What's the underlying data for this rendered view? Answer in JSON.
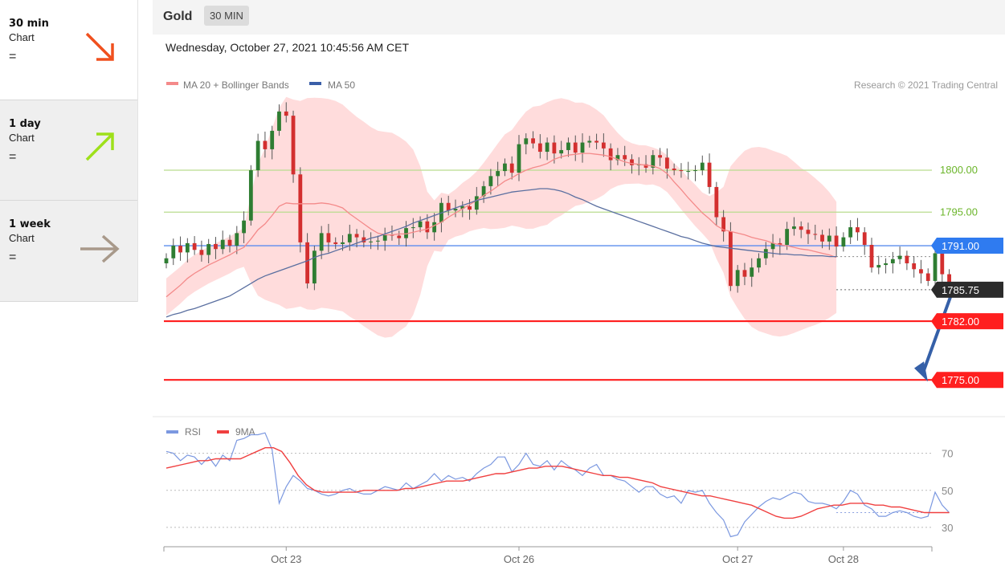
{
  "timeframes": [
    {
      "title": "30 min",
      "sub": "Chart",
      "sign": "=",
      "direction": "down",
      "color": "#f0501e"
    },
    {
      "title": "1 day",
      "sub": "Chart",
      "sign": "=",
      "direction": "up",
      "color": "#9ee01a"
    },
    {
      "title": "1 week",
      "sub": "Chart",
      "sign": "=",
      "direction": "right",
      "color": "#a8998a"
    }
  ],
  "header": {
    "instrument": "Gold",
    "period": "30 MIN"
  },
  "timestamp": "Wednesday, October 27, 2021 10:45:56 AM CET",
  "legend": {
    "ma20": "MA 20 + Bollinger Bands",
    "ma50": "MA 50",
    "credit": "Research © 2021 Trading Central"
  },
  "rsi_legend": {
    "rsi": "RSI",
    "ma": "9MA"
  },
  "colors": {
    "up": "#2e7d32",
    "down": "#d32f2f",
    "ma20": "#f48a8a",
    "ma50": "#5a6fa0",
    "band": "#ffd6d6",
    "support": "#ff1f1f",
    "resistance": "#b9dc8e",
    "pivot": "#5a8dee",
    "rsi": "#7b98e0",
    "rsi_ma": "#f04040"
  },
  "chart_data": [
    {
      "type": "candlestick",
      "title": "Gold",
      "price_range": [
        1771,
        1809
      ],
      "x_ticks": [
        {
          "label": "Oct 23",
          "index": 17
        },
        {
          "label": "Oct 26",
          "index": 50
        },
        {
          "label": "Oct 27",
          "index": 81
        },
        {
          "label": "Oct 28",
          "index": 96
        }
      ],
      "levels": [
        {
          "value": 1800.0,
          "label": "1800.00",
          "kind": "resistance"
        },
        {
          "value": 1795.0,
          "label": "1795.00",
          "kind": "resistance"
        },
        {
          "value": 1791.0,
          "label": "1791.00",
          "kind": "pivot"
        },
        {
          "value": 1785.75,
          "label": "1785.75",
          "kind": "last"
        },
        {
          "value": 1782.0,
          "label": "1782.00",
          "kind": "support"
        },
        {
          "value": 1775.0,
          "label": "1775.00",
          "kind": "support"
        }
      ],
      "close": [
        1789.5,
        1791.0,
        1790.2,
        1791.3,
        1790.5,
        1789.9,
        1791.2,
        1790.6,
        1791.7,
        1791.0,
        1792.5,
        1794.0,
        1800.0,
        1803.5,
        1802.5,
        1804.7,
        1807.0,
        1806.5,
        1799.5,
        1791.4,
        1786.5,
        1790.4,
        1792.5,
        1791.4,
        1791.2,
        1791.4,
        1792.4,
        1792.0,
        1791.4,
        1791.5,
        1791.6,
        1792.3,
        1792.2,
        1791.9,
        1793.1,
        1793.2,
        1793.9,
        1792.6,
        1793.8,
        1796.1,
        1795.2,
        1795.4,
        1795.7,
        1795.3,
        1796.9,
        1798.1,
        1799.3,
        1799.9,
        1800.8,
        1799.7,
        1803.1,
        1803.8,
        1803.2,
        1802.2,
        1803.3,
        1802.0,
        1802.4,
        1803.3,
        1802.1,
        1803.3,
        1803.5,
        1803.3,
        1802.6,
        1801.2,
        1801.8,
        1801.3,
        1800.6,
        1800.7,
        1800.3,
        1801.8,
        1801.5,
        1800.2,
        1800.0,
        1799.9,
        1799.9,
        1800.0,
        1800.9,
        1798.0,
        1794.4,
        1792.7,
        1786.2,
        1788.1,
        1787.3,
        1788.4,
        1789.5,
        1790.6,
        1791.3,
        1791.1,
        1793.0,
        1793.3,
        1792.9,
        1792.4,
        1792.3,
        1791.5,
        1792.2,
        1790.9,
        1792.0,
        1793.2,
        1792.6,
        1791.1,
        1788.4,
        1788.7,
        1788.9,
        1789.4,
        1789.8,
        1788.9,
        1788.2,
        1787.7,
        1786.8,
        1790.1,
        1787.6,
        1785.75
      ],
      "ma20": [
        1784.9,
        1785.6,
        1786.3,
        1787.1,
        1787.7,
        1788.2,
        1788.7,
        1789.1,
        1789.5,
        1789.9,
        1790.4,
        1790.8,
        1791.8,
        1792.9,
        1793.6,
        1794.6,
        1795.7,
        1796.1,
        1796.0,
        1796.0,
        1796.0,
        1796.0,
        1796.1,
        1796.0,
        1795.8,
        1795.5,
        1794.8,
        1794.2,
        1793.6,
        1793.0,
        1792.5,
        1792.3,
        1792.3,
        1792.4,
        1792.4,
        1792.6,
        1792.8,
        1793.0,
        1793.4,
        1793.8,
        1794.4,
        1794.9,
        1795.4,
        1795.9,
        1796.4,
        1797.0,
        1797.5,
        1798.1,
        1798.7,
        1799.1,
        1799.6,
        1800.0,
        1800.3,
        1800.5,
        1800.8,
        1801.3,
        1801.6,
        1801.8,
        1801.9,
        1802.0,
        1802.0,
        1801.9,
        1801.8,
        1801.6,
        1801.3,
        1801.0,
        1800.8,
        1800.7,
        1800.6,
        1800.5,
        1800.2,
        1799.6,
        1798.6,
        1797.7,
        1796.7,
        1795.8,
        1794.9,
        1794.2,
        1793.4,
        1792.9,
        1792.7,
        1792.5,
        1792.3,
        1792.0,
        1791.8,
        1791.6,
        1791.3,
        1791.1,
        1791.0,
        1790.8,
        1790.6,
        1790.5,
        1790.3,
        1790.1,
        1789.9,
        1789.6
      ],
      "ma50": [
        1782.5,
        1782.8,
        1783.0,
        1783.3,
        1783.5,
        1783.8,
        1784.1,
        1784.4,
        1784.7,
        1785.0,
        1785.5,
        1786.0,
        1786.5,
        1787.0,
        1787.4,
        1787.7,
        1788.0,
        1788.3,
        1788.6,
        1788.9,
        1789.2,
        1789.6,
        1789.9,
        1790.1,
        1790.4,
        1790.7,
        1791.0,
        1791.3,
        1791.6,
        1791.9,
        1792.1,
        1792.4,
        1792.7,
        1793.0,
        1793.3,
        1793.7,
        1794.0,
        1794.3,
        1794.6,
        1794.9,
        1795.2,
        1795.5,
        1795.8,
        1796.1,
        1796.4,
        1796.6,
        1796.8,
        1797.0,
        1797.2,
        1797.4,
        1797.5,
        1797.6,
        1797.7,
        1797.8,
        1797.8,
        1797.7,
        1797.5,
        1797.2,
        1796.8,
        1796.5,
        1796.1,
        1795.7,
        1795.4,
        1795.1,
        1794.8,
        1794.5,
        1794.2,
        1793.9,
        1793.6,
        1793.3,
        1793.0,
        1792.7,
        1792.4,
        1792.1,
        1791.9,
        1791.6,
        1791.3,
        1791.1,
        1790.9,
        1790.8,
        1790.7,
        1790.6,
        1790.5,
        1790.4,
        1790.3,
        1790.2,
        1790.1,
        1790.0,
        1790.0,
        1789.9,
        1789.9,
        1789.8,
        1789.8,
        1789.8,
        1789.7,
        1789.7
      ]
    },
    {
      "type": "line",
      "title": "RSI",
      "ylim": [
        20,
        85
      ],
      "y_ticks": [
        30,
        50,
        70
      ],
      "rsi": [
        71,
        70,
        66,
        69,
        68,
        64,
        68,
        63,
        69,
        66,
        77,
        78,
        80,
        80,
        81,
        72,
        43,
        52,
        58,
        55,
        51,
        50,
        48,
        47,
        48,
        50,
        51,
        49,
        48,
        48,
        50,
        52,
        51,
        50,
        54,
        51,
        53,
        55,
        59,
        55,
        58,
        56,
        57,
        55,
        59,
        62,
        64,
        68,
        68,
        60,
        64,
        70,
        64,
        63,
        66,
        61,
        66,
        63,
        61,
        58,
        62,
        64,
        58,
        58,
        56,
        55,
        52,
        49,
        52,
        52,
        48,
        46,
        47,
        43,
        50,
        49,
        50,
        43,
        38,
        34,
        25,
        26,
        33,
        37,
        41,
        44,
        46,
        45,
        47,
        49,
        48,
        44,
        43,
        43,
        42,
        40,
        44,
        50,
        48,
        42,
        40,
        36,
        36,
        38,
        39,
        38,
        36,
        35,
        36,
        49,
        42,
        38
      ],
      "rsi_ma": [
        62,
        63,
        64,
        65,
        66,
        66,
        67,
        67,
        67,
        67,
        69,
        71,
        73,
        73,
        71,
        65,
        58,
        53,
        50,
        49,
        49,
        49,
        49,
        49,
        50,
        50,
        50,
        50,
        50,
        51,
        51,
        52,
        53,
        54,
        55,
        55,
        55,
        56,
        57,
        58,
        59,
        59,
        60,
        61,
        62,
        62,
        63,
        63,
        63,
        62,
        61,
        60,
        59,
        58,
        58,
        57,
        57,
        56,
        55,
        54,
        52,
        51,
        50,
        49,
        48,
        47,
        47,
        46,
        45,
        44,
        43,
        42,
        40,
        38,
        36,
        35,
        35,
        36,
        38,
        40,
        41,
        42,
        42,
        43,
        43,
        43,
        42,
        42,
        41,
        41,
        40,
        39,
        38,
        38,
        38,
        38
      ]
    }
  ]
}
